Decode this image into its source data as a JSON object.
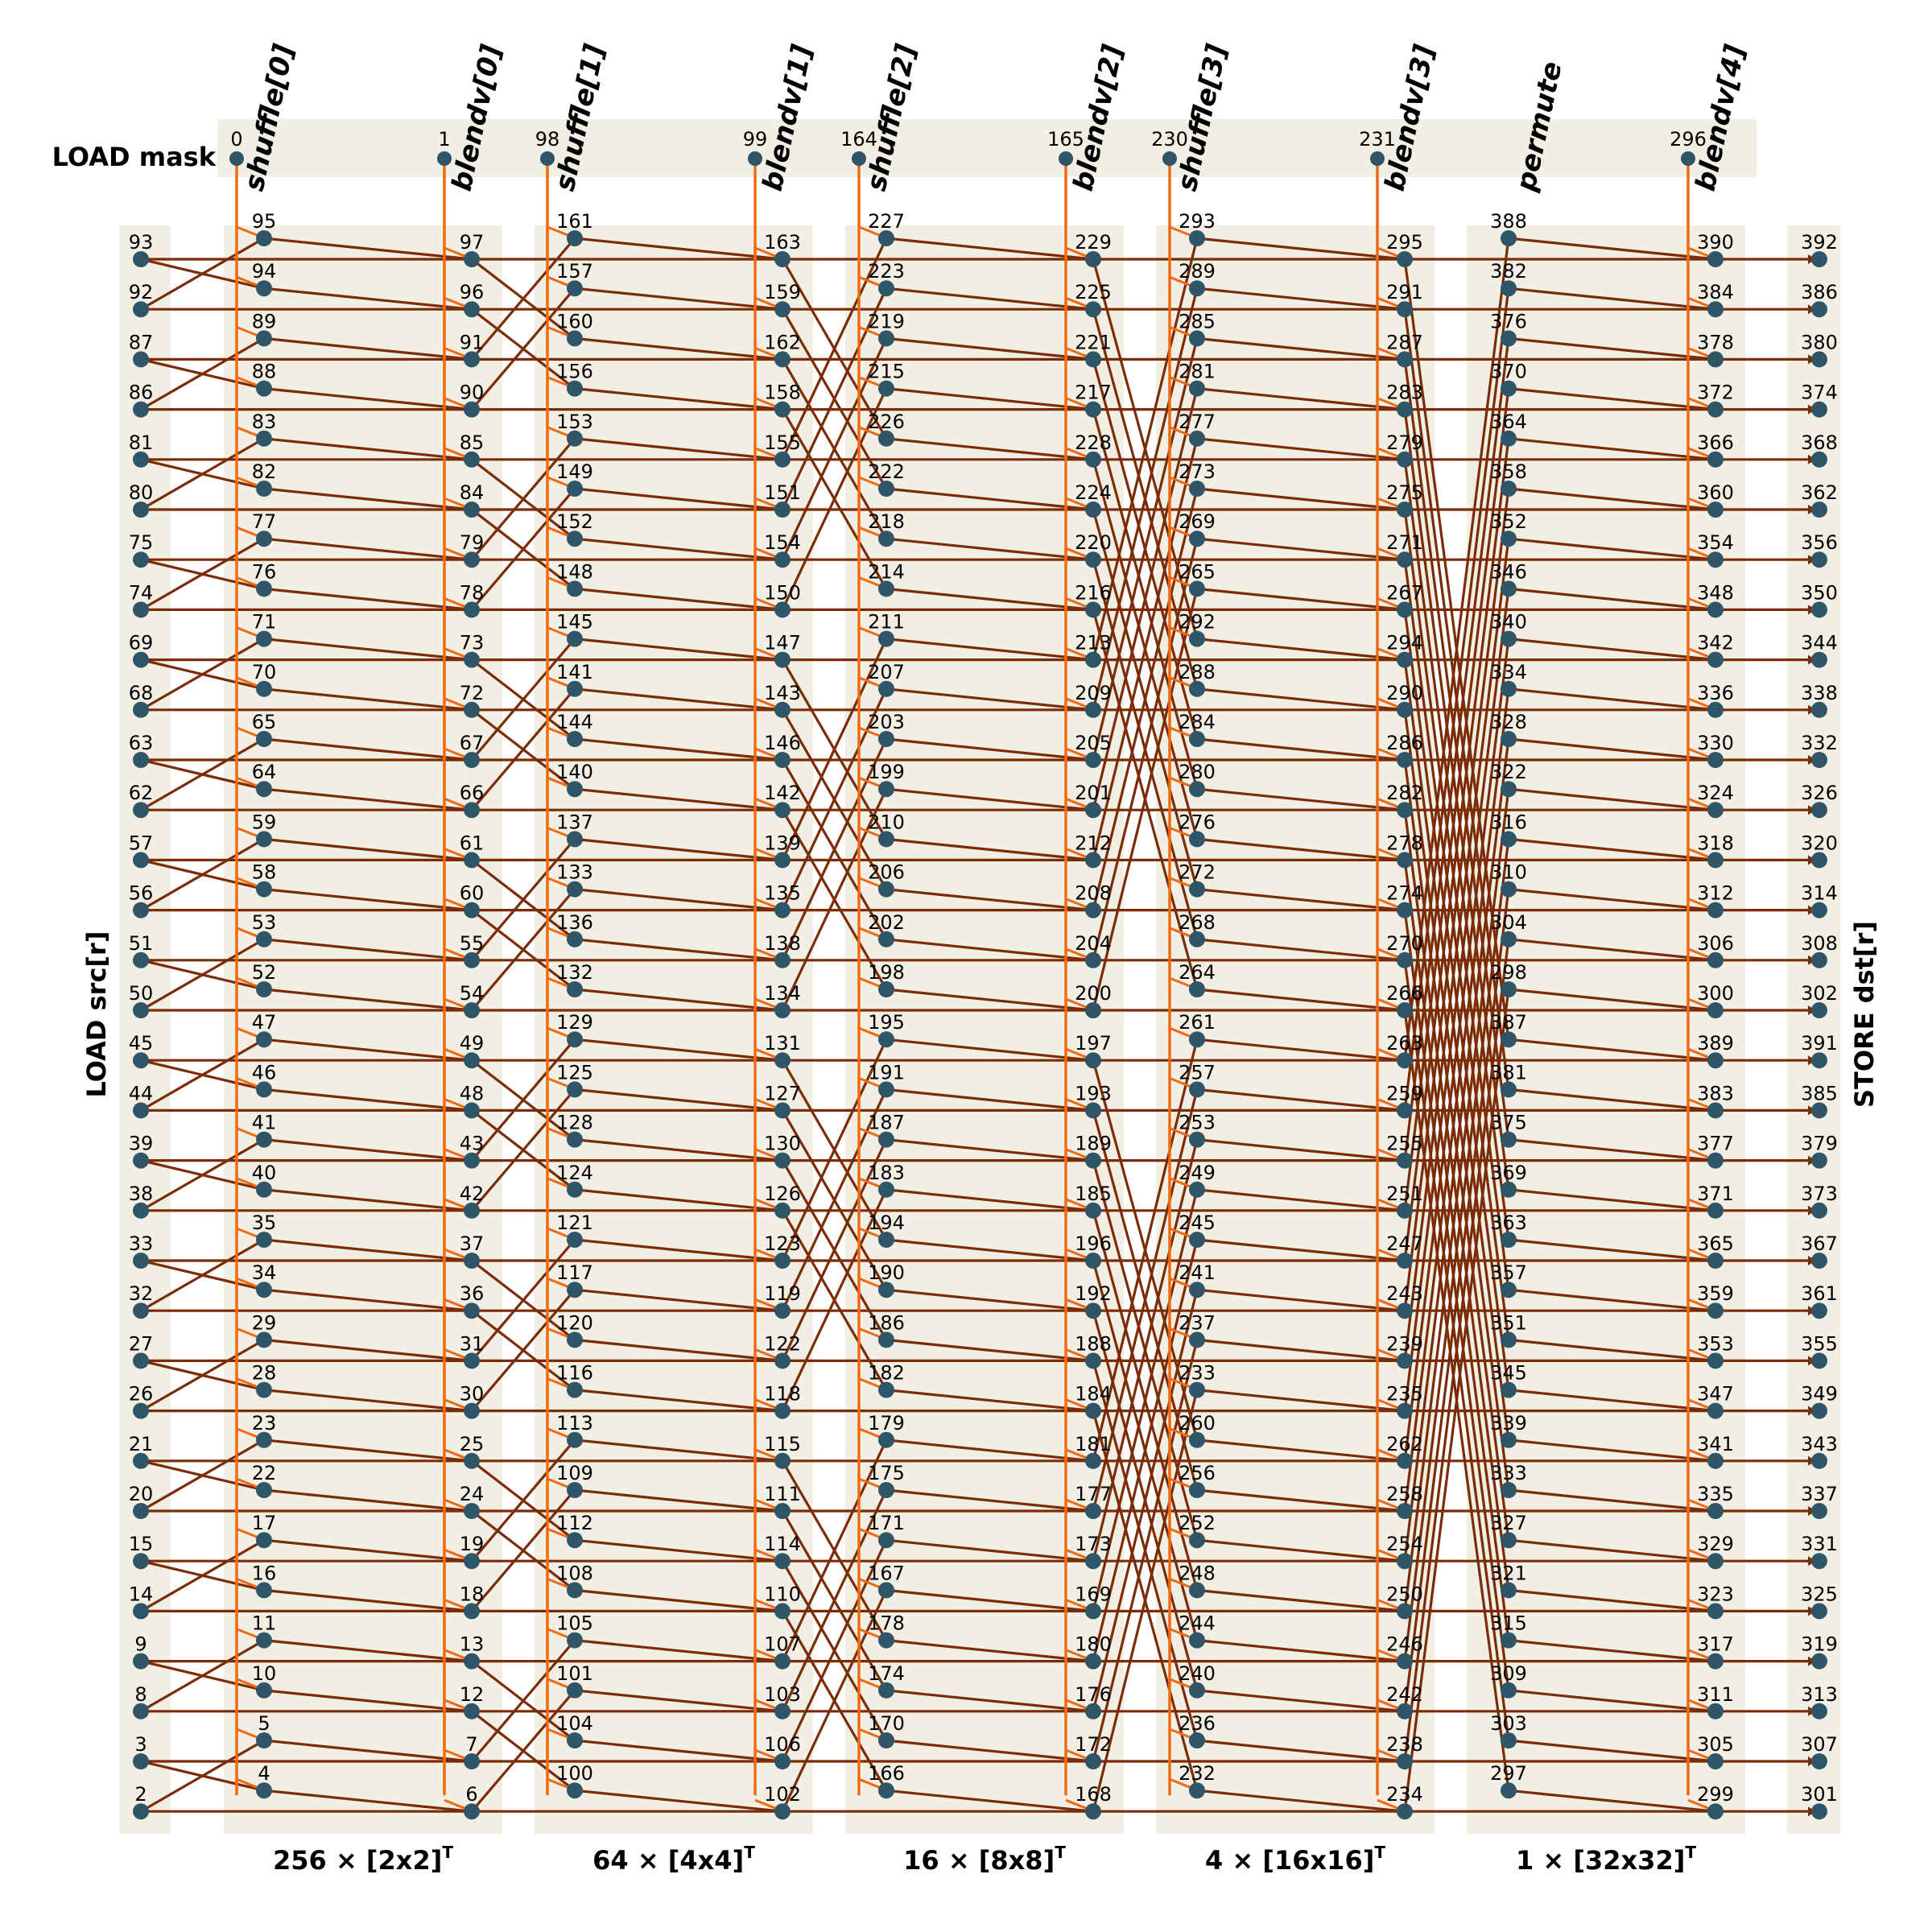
{
  "colors": {
    "panel": "#f1eee4",
    "wire": "#7b2c07",
    "mask_wire": "#ef6a12",
    "node": "#2e5568",
    "text": "#000000"
  },
  "labels": {
    "load_mask": "LOAD mask",
    "load_src": "LOAD src[r]",
    "store_dst": "STORE dst[r]"
  },
  "ops": [
    {
      "id": "0",
      "name": "shuffle[0]"
    },
    {
      "id": "1",
      "name": "blendv[0]"
    },
    {
      "id": "98",
      "name": "shuffle[1]"
    },
    {
      "id": "99",
      "name": "blendv[1]"
    },
    {
      "id": "164",
      "name": "shuffle[2]"
    },
    {
      "id": "165",
      "name": "blendv[2]"
    },
    {
      "id": "230",
      "name": "shuffle[3]"
    },
    {
      "id": "231",
      "name": "blendv[3]"
    },
    {
      "id": "",
      "name": "permute"
    },
    {
      "id": "296",
      "name": "blendv[4]"
    }
  ],
  "stages": [
    {
      "count": "256",
      "shape": "[2x2]",
      "sup": "T"
    },
    {
      "count": "64",
      "shape": "[4x4]",
      "sup": "T"
    },
    {
      "count": "16",
      "shape": "[8x8]",
      "sup": "T"
    },
    {
      "count": "4",
      "shape": "[16x16]",
      "sup": "T"
    },
    {
      "count": "1",
      "shape": "[32x32]",
      "sup": "T"
    }
  ],
  "columns": {
    "src": [
      93,
      92,
      87,
      86,
      81,
      80,
      75,
      74,
      69,
      68,
      63,
      62,
      57,
      56,
      51,
      50,
      45,
      44,
      39,
      38,
      33,
      32,
      27,
      26,
      21,
      20,
      15,
      14,
      9,
      8,
      3,
      2
    ],
    "shuffle0": [
      95,
      94,
      89,
      88,
      83,
      82,
      77,
      76,
      71,
      70,
      65,
      64,
      59,
      58,
      53,
      52,
      47,
      46,
      41,
      40,
      35,
      34,
      29,
      28,
      23,
      22,
      17,
      16,
      11,
      10,
      5,
      4
    ],
    "blend0": [
      97,
      96,
      91,
      90,
      85,
      84,
      79,
      78,
      73,
      72,
      67,
      66,
      61,
      60,
      55,
      54,
      49,
      48,
      43,
      42,
      37,
      36,
      31,
      30,
      25,
      24,
      19,
      18,
      13,
      12,
      7,
      6
    ],
    "shuffle1": [
      161,
      157,
      160,
      156,
      153,
      149,
      152,
      148,
      145,
      141,
      144,
      140,
      137,
      133,
      136,
      132,
      129,
      125,
      128,
      124,
      121,
      117,
      120,
      116,
      113,
      109,
      112,
      108,
      105,
      101,
      104,
      100
    ],
    "blend1": [
      163,
      159,
      162,
      158,
      155,
      151,
      154,
      150,
      147,
      143,
      146,
      142,
      139,
      135,
      138,
      134,
      131,
      127,
      130,
      126,
      123,
      119,
      122,
      118,
      115,
      111,
      114,
      110,
      107,
      103,
      106,
      102
    ],
    "shuffle2": [
      227,
      223,
      219,
      215,
      226,
      222,
      218,
      214,
      211,
      207,
      203,
      199,
      210,
      206,
      202,
      198,
      195,
      191,
      187,
      183,
      194,
      190,
      186,
      182,
      179,
      175,
      171,
      167,
      178,
      174,
      170,
      166
    ],
    "blend2": [
      229,
      225,
      221,
      217,
      228,
      224,
      220,
      216,
      213,
      209,
      205,
      201,
      212,
      208,
      204,
      200,
      197,
      193,
      189,
      185,
      196,
      192,
      188,
      184,
      181,
      177,
      173,
      169,
      180,
      176,
      172,
      168
    ],
    "shuffle3": [
      293,
      289,
      285,
      281,
      277,
      273,
      269,
      265,
      292,
      288,
      284,
      280,
      276,
      272,
      268,
      264,
      261,
      257,
      253,
      249,
      245,
      241,
      237,
      233,
      260,
      256,
      252,
      248,
      244,
      240,
      236,
      232
    ],
    "blend3": [
      295,
      291,
      287,
      283,
      279,
      275,
      271,
      267,
      294,
      290,
      286,
      282,
      278,
      274,
      270,
      266,
      263,
      259,
      255,
      251,
      247,
      243,
      239,
      235,
      262,
      258,
      254,
      250,
      246,
      242,
      238,
      234
    ],
    "permute": [
      388,
      382,
      376,
      370,
      364,
      358,
      352,
      346,
      340,
      334,
      328,
      322,
      316,
      310,
      304,
      298,
      387,
      381,
      375,
      369,
      363,
      357,
      351,
      345,
      339,
      333,
      327,
      321,
      315,
      309,
      303,
      297
    ],
    "blend4": [
      390,
      384,
      378,
      372,
      366,
      360,
      354,
      348,
      342,
      336,
      330,
      324,
      318,
      312,
      306,
      300,
      389,
      383,
      377,
      371,
      365,
      359,
      353,
      347,
      341,
      335,
      329,
      323,
      317,
      311,
      305,
      299
    ],
    "dst": [
      392,
      386,
      380,
      374,
      368,
      362,
      356,
      350,
      344,
      338,
      332,
      326,
      320,
      314,
      308,
      302,
      391,
      385,
      379,
      373,
      367,
      361,
      355,
      349,
      343,
      337,
      331,
      325,
      319,
      313,
      307,
      301
    ]
  }
}
